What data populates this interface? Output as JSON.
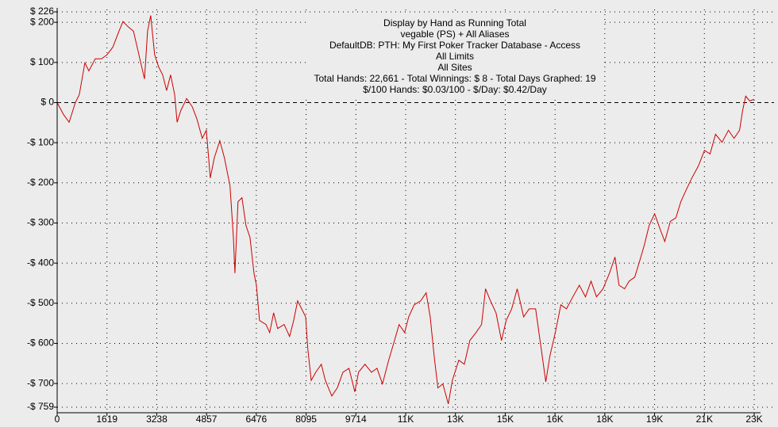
{
  "chart_data": {
    "type": "line",
    "title": "Display by Hand as Running Total",
    "subtitle": [
      "vegable (PS) + All Aliases",
      "DefaultDB: PTH: My First Poker Tracker Database - Access",
      "All Limits",
      "All Sites",
      "Total Hands: 22,661 - Total Winnings: $ 8 - Total Days Graphed: 19",
      "$/100 Hands: $0.03/100 - $/Day: $0.42/Day"
    ],
    "grid": true,
    "xlim": [
      0,
      22666
    ],
    "ylim": [
      -759,
      226
    ],
    "xticks": [
      0,
      1619,
      3238,
      4857,
      6476,
      8095,
      9714,
      {
        "value": 11333,
        "label": "11K"
      },
      {
        "value": 12952,
        "label": "13K"
      },
      {
        "value": 14571,
        "label": "15K"
      },
      {
        "value": 16190,
        "label": "16K"
      },
      {
        "value": 17809,
        "label": "18K"
      },
      {
        "value": 19428,
        "label": "19K"
      },
      {
        "value": 21047,
        "label": "21K"
      },
      {
        "value": 22666,
        "label": "23K"
      }
    ],
    "yticks": [
      {
        "value": 226,
        "label": "$ 226"
      },
      {
        "value": 200,
        "label": "$ 200"
      },
      {
        "value": 100,
        "label": "$ 100"
      },
      {
        "value": 0,
        "label": "$ 0"
      },
      {
        "value": -100,
        "label": "-$ 100"
      },
      {
        "value": -200,
        "label": "-$ 200"
      },
      {
        "value": -300,
        "label": "-$ 300"
      },
      {
        "value": -400,
        "label": "-$ 400"
      },
      {
        "value": -500,
        "label": "-$ 500"
      },
      {
        "value": -600,
        "label": "-$ 600"
      },
      {
        "value": -700,
        "label": "-$ 700"
      },
      {
        "value": -759,
        "label": "-$ 759"
      }
    ],
    "series": [
      {
        "color": "#cc0000",
        "x": [
          0,
          210,
          390,
          590,
          720,
          900,
          1030,
          1240,
          1440,
          1620,
          1810,
          2010,
          2140,
          2320,
          2480,
          2660,
          2840,
          2940,
          3040,
          3170,
          3300,
          3430,
          3560,
          3690,
          3820,
          3900,
          4020,
          4210,
          4390,
          4540,
          4720,
          4850,
          4980,
          5110,
          5290,
          5440,
          5620,
          5730,
          5780,
          5880,
          6010,
          6140,
          6270,
          6400,
          6480,
          6580,
          6790,
          6910,
          7040,
          7170,
          7380,
          7560,
          7690,
          7820,
          7950,
          8080,
          8150,
          8260,
          8410,
          8590,
          8720,
          8930,
          9110,
          9290,
          9490,
          9680,
          9800,
          10010,
          10220,
          10400,
          10580,
          10780,
          10970,
          11120,
          11300,
          11430,
          11610,
          11820,
          12000,
          12130,
          12260,
          12380,
          12540,
          12720,
          12850,
          13060,
          13240,
          13420,
          13620,
          13800,
          13930,
          14090,
          14270,
          14450,
          14600,
          14780,
          14960,
          15170,
          15350,
          15560,
          15740,
          15890,
          16020,
          16200,
          16380,
          16560,
          16770,
          16980,
          17180,
          17360,
          17540,
          17750,
          17960,
          18140,
          18270,
          18450,
          18600,
          18780,
          18940,
          19090,
          19250,
          19430,
          19610,
          19760,
          19940,
          20120,
          20280,
          20460,
          20640,
          20850,
          21050,
          21230,
          21410,
          21620,
          21830,
          22010,
          22190,
          22290,
          22390,
          22520,
          22661
        ],
        "values": [
          0,
          -30,
          -49,
          0,
          20,
          99,
          79,
          109,
          109,
          119,
          138,
          178,
          202,
          188,
          178,
          119,
          59,
          178,
          217,
          119,
          89,
          69,
          30,
          69,
          20,
          -49,
          -20,
          10,
          -10,
          -40,
          -89,
          -69,
          -188,
          -138,
          -95,
          -138,
          -207,
          -336,
          -425,
          -247,
          -237,
          -306,
          -336,
          -425,
          -455,
          -543,
          -553,
          -573,
          -524,
          -563,
          -553,
          -583,
          -543,
          -494,
          -514,
          -534,
          -613,
          -692,
          -672,
          -652,
          -692,
          -731,
          -711,
          -672,
          -662,
          -721,
          -672,
          -652,
          -672,
          -662,
          -701,
          -642,
          -593,
          -553,
          -573,
          -534,
          -504,
          -494,
          -474,
          -534,
          -632,
          -711,
          -701,
          -751,
          -692,
          -642,
          -652,
          -593,
          -573,
          -553,
          -464,
          -494,
          -524,
          -593,
          -543,
          -514,
          -464,
          -534,
          -514,
          -514,
          -613,
          -696,
          -632,
          -573,
          -504,
          -514,
          -484,
          -455,
          -484,
          -445,
          -484,
          -464,
          -425,
          -385,
          -455,
          -464,
          -445,
          -435,
          -395,
          -356,
          -306,
          -277,
          -316,
          -346,
          -296,
          -287,
          -247,
          -217,
          -188,
          -158,
          -119,
          -128,
          -79,
          -99,
          -69,
          -89,
          -69,
          -20,
          16,
          4,
          8
        ]
      }
    ]
  }
}
